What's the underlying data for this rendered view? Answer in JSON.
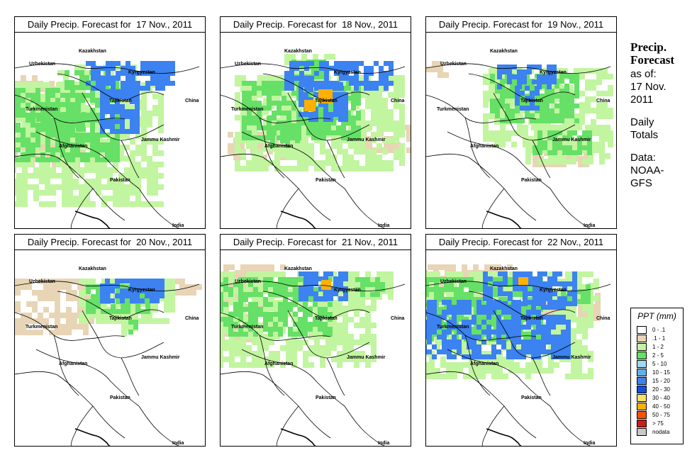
{
  "title_prefix": "Daily Precip. Forecast for",
  "panels": [
    {
      "date": "17 Nov., 2011"
    },
    {
      "date": "18 Nov., 2011"
    },
    {
      "date": "19 Nov., 2011"
    },
    {
      "date": "20 Nov., 2011"
    },
    {
      "date": "21 Nov., 2011"
    },
    {
      "date": "22 Nov., 2011"
    }
  ],
  "map_labels": {
    "uzbekistan": "Uzbekistan",
    "kazakhstan": "Kazakhstan",
    "kyrgyzstan": "Kyrgyzstan",
    "turkmenistan": "Turkmenistan",
    "tajikistan": "Tajikistan",
    "china": "China",
    "afghanistan": "Afghanistan",
    "jammu": "Jammu Kashmir",
    "pakistan": "Pakistan",
    "india": "India"
  },
  "side": {
    "title_line1": "Precip.",
    "title_line2": "Forecast",
    "asof_line1": "as of:",
    "asof_line2": "17 Nov.",
    "asof_line3": "2011",
    "daily_line1": "Daily",
    "daily_line2": "Totals",
    "data_line1": "Data:",
    "data_line2": "NOAA-",
    "data_line3": "GFS"
  },
  "legend": {
    "title": "PPT (mm)",
    "items": [
      {
        "label": "0 - .1",
        "color": "#ffffff"
      },
      {
        "label": ".1 - 1",
        "color": "#e8d5b5"
      },
      {
        "label": "1 - 2",
        "color": "#c2f5a0"
      },
      {
        "label": "2 - 5",
        "color": "#66e066"
      },
      {
        "label": "5 - 10",
        "color": "#a3d6f5"
      },
      {
        "label": "10 - 15",
        "color": "#5fb0f0"
      },
      {
        "label": "15 - 20",
        "color": "#3c82f0"
      },
      {
        "label": "20 - 30",
        "color": "#1450dc"
      },
      {
        "label": "30 - 40",
        "color": "#ffe066"
      },
      {
        "label": "40 - 50",
        "color": "#ffb000"
      },
      {
        "label": "50 - 75",
        "color": "#ff5000"
      },
      {
        "label": "> 75",
        "color": "#c81e1e"
      },
      {
        "label": "nodata",
        "color": "#c8c8c8"
      }
    ]
  },
  "precip_patterns": [
    {
      "green": [
        [
          -30,
          70,
          240,
          170
        ],
        [
          60,
          45,
          110,
          40
        ],
        [
          20,
          90,
          100,
          60
        ]
      ],
      "blue": [
        [
          100,
          40,
          120,
          40
        ],
        [
          120,
          80,
          50,
          60
        ]
      ],
      "tan": [
        [
          -20,
          150,
          120,
          40
        ],
        [
          0,
          60,
          60,
          30
        ]
      ],
      "hot": []
    },
    {
      "green": [
        [
          20,
          60,
          240,
          130
        ],
        [
          90,
          30,
          70,
          40
        ],
        [
          60,
          120,
          60,
          50
        ]
      ],
      "blue": [
        [
          90,
          40,
          150,
          40
        ],
        [
          110,
          70,
          70,
          50
        ]
      ],
      "tan": [
        [
          10,
          140,
          90,
          40
        ],
        [
          190,
          130,
          80,
          40
        ]
      ],
      "hot": [
        [
          138,
          80,
          20,
          20
        ],
        [
          118,
          95,
          16,
          16
        ]
      ]
    },
    {
      "green": [
        [
          80,
          50,
          180,
          110
        ],
        [
          140,
          130,
          120,
          50
        ]
      ],
      "blue": [
        [
          100,
          45,
          80,
          30
        ],
        [
          125,
          75,
          30,
          30
        ]
      ],
      "tan": [
        [
          0,
          40,
          30,
          20
        ],
        [
          150,
          150,
          80,
          40
        ]
      ],
      "hot": []
    },
    {
      "green": [
        [
          90,
          40,
          130,
          60
        ],
        [
          150,
          90,
          20,
          30
        ]
      ],
      "blue": [
        [
          120,
          40,
          90,
          30
        ]
      ],
      "tan": [
        [
          -40,
          40,
          150,
          80
        ],
        [
          200,
          40,
          60,
          20
        ]
      ],
      "hot": []
    },
    {
      "green": [
        [
          -20,
          30,
          240,
          130
        ],
        [
          180,
          30,
          60,
          40
        ]
      ],
      "blue": [
        [
          110,
          30,
          70,
          40
        ]
      ],
      "tan": [
        [
          -20,
          20,
          110,
          60
        ],
        [
          -10,
          90,
          60,
          40
        ]
      ],
      "hot": [
        [
          142,
          42,
          14,
          14
        ]
      ]
    },
    {
      "green": [
        [
          -20,
          30,
          250,
          150
        ],
        [
          180,
          40,
          60,
          40
        ]
      ],
      "blue": [
        [
          -20,
          70,
          220,
          80
        ],
        [
          80,
          30,
          130,
          45
        ]
      ],
      "tan": [
        [
          -30,
          20,
          150,
          60
        ],
        [
          150,
          60,
          90,
          40
        ]
      ],
      "hot": [
        [
          130,
          38,
          14,
          12
        ]
      ]
    }
  ]
}
